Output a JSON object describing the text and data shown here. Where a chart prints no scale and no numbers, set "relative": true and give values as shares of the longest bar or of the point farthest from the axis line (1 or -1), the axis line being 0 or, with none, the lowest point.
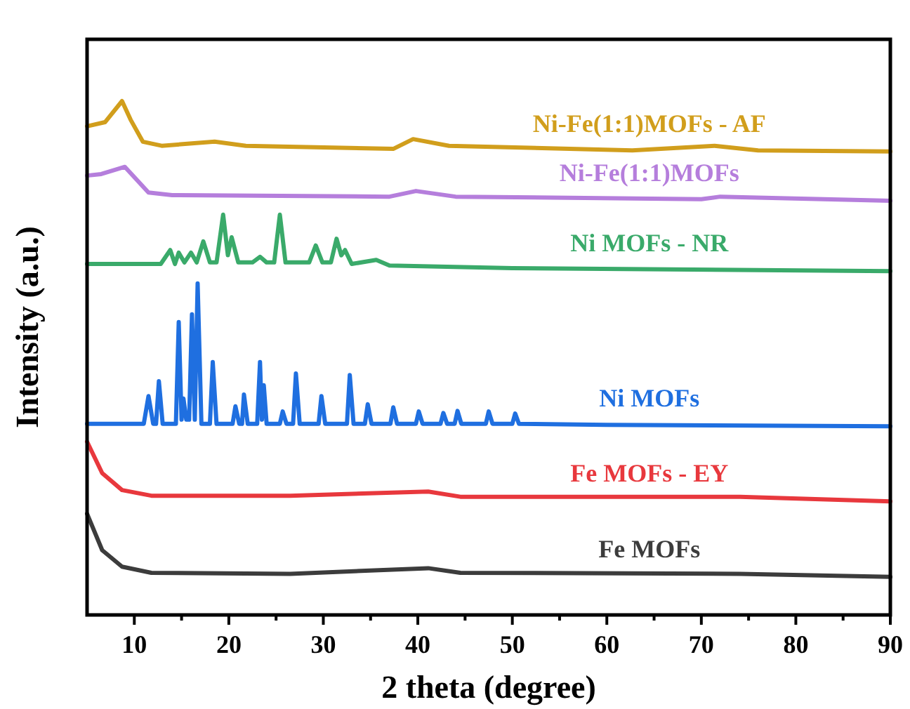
{
  "chart_data": {
    "type": "line",
    "relative": true,
    "xlabel": "2 theta (degree)",
    "ylabel": "Intensity (a.u.)",
    "xlim": [
      5,
      90
    ],
    "xticks": [
      10,
      {
        "value": 15,
        "label": null
      },
      20,
      {
        "value": 25,
        "label": null
      },
      30,
      {
        "value": 35,
        "label": null
      },
      40,
      {
        "value": 45,
        "label": null
      },
      50,
      {
        "value": 55,
        "label": null
      },
      60,
      {
        "value": 65,
        "label": null
      },
      70,
      {
        "value": 75,
        "label": null
      },
      80,
      {
        "value": 85,
        "label": null
      },
      90
    ],
    "grid": false,
    "marker": "none",
    "line_style": "solid",
    "series": [
      {
        "name": "Ni-Fe(1:1)MOFs - AF",
        "color": "#d19e1c",
        "x": [
          5,
          6.9,
          8.7,
          9.6,
          10.9,
          12.9,
          18.5,
          21.8,
          37.4,
          39.5,
          43.3,
          62.7,
          71.4,
          76,
          90
        ],
        "values": [
          0.951,
          0.959,
          1,
          0.964,
          0.921,
          0.913,
          0.921,
          0.913,
          0.907,
          0.926,
          0.913,
          0.904,
          0.913,
          0.904,
          0.902
        ]
      },
      {
        "name": "Ni-Fe(1:1)MOFs",
        "color": "#b57edc",
        "x": [
          5,
          6.5,
          9,
          11.5,
          14,
          37,
          39.8,
          44,
          70,
          72,
          90
        ],
        "values": [
          0.855,
          0.858,
          0.872,
          0.822,
          0.817,
          0.814,
          0.825,
          0.814,
          0.809,
          0.814,
          0.806
        ]
      },
      {
        "name": "Ni MOFs - NR",
        "color": "#3aaa6a",
        "x": [
          5,
          12.8,
          13.8,
          14.3,
          14.7,
          15.3,
          16,
          16.6,
          17.3,
          18,
          18.7,
          19.4,
          19.9,
          20.3,
          21,
          22.5,
          23.3,
          24,
          24.8,
          25.4,
          26,
          28.5,
          29.2,
          29.9,
          30.8,
          31.4,
          31.9,
          32.3,
          33,
          35.6,
          37,
          50,
          90
        ],
        "values": [
          0.683,
          0.683,
          0.71,
          0.683,
          0.705,
          0.686,
          0.705,
          0.686,
          0.727,
          0.686,
          0.686,
          0.779,
          0.7,
          0.735,
          0.686,
          0.686,
          0.697,
          0.686,
          0.686,
          0.779,
          0.686,
          0.686,
          0.719,
          0.686,
          0.686,
          0.732,
          0.7,
          0.71,
          0.683,
          0.691,
          0.68,
          0.675,
          0.669
        ]
      },
      {
        "name": "Ni MOFs",
        "color": "#1f6fe0",
        "x": [
          5,
          11,
          11.5,
          12,
          12.3,
          12.6,
          13,
          14.4,
          14.7,
          15,
          15.2,
          15.5,
          15.8,
          16.1,
          16.4,
          16.7,
          17.1,
          18,
          18.3,
          18.7,
          20.4,
          20.7,
          21.1,
          21.4,
          21.6,
          22,
          23,
          23.3,
          23.5,
          23.7,
          24,
          25.4,
          25.7,
          26.1,
          26.8,
          27.1,
          27.5,
          29.5,
          29.8,
          30.2,
          32.5,
          32.8,
          33.2,
          34.4,
          34.7,
          35.1,
          37.1,
          37.4,
          37.8,
          39.8,
          40.1,
          40.5,
          42.4,
          42.7,
          43.1,
          43.9,
          44.2,
          44.6,
          47.2,
          47.5,
          47.9,
          50,
          50.3,
          50.7,
          60,
          90
        ],
        "values": [
          0.372,
          0.372,
          0.426,
          0.372,
          0.372,
          0.455,
          0.372,
          0.372,
          0.57,
          0.38,
          0.421,
          0.38,
          0.38,
          0.585,
          0.38,
          0.645,
          0.372,
          0.372,
          0.492,
          0.372,
          0.372,
          0.406,
          0.372,
          0.372,
          0.429,
          0.372,
          0.372,
          0.492,
          0.38,
          0.447,
          0.372,
          0.372,
          0.396,
          0.372,
          0.372,
          0.47,
          0.372,
          0.372,
          0.426,
          0.372,
          0.372,
          0.467,
          0.372,
          0.372,
          0.41,
          0.372,
          0.372,
          0.404,
          0.372,
          0.372,
          0.396,
          0.372,
          0.372,
          0.393,
          0.372,
          0.372,
          0.397,
          0.372,
          0.372,
          0.396,
          0.372,
          0.372,
          0.392,
          0.372,
          0.37,
          0.367
        ]
      },
      {
        "name": "Fe MOFs - EY",
        "color": "#e8383d",
        "x": [
          5,
          6.6,
          8.7,
          11.8,
          26.5,
          41.1,
          44.5,
          74.1,
          90
        ],
        "values": [
          0.337,
          0.276,
          0.243,
          0.232,
          0.232,
          0.24,
          0.23,
          0.23,
          0.221
        ]
      },
      {
        "name": "Fe MOFs",
        "color": "#3c3c3c",
        "x": [
          5,
          6.6,
          8.7,
          11.8,
          26.5,
          41.1,
          44.5,
          74.1,
          90
        ],
        "values": [
          0.197,
          0.126,
          0.094,
          0.082,
          0.08,
          0.091,
          0.082,
          0.08,
          0.074
        ]
      }
    ]
  }
}
